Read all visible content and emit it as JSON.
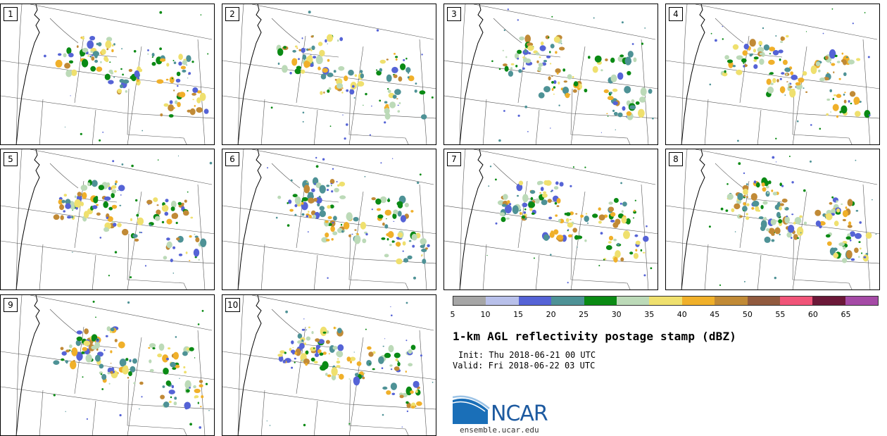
{
  "members": [
    "1",
    "2",
    "3",
    "4",
    "5",
    "6",
    "7",
    "8",
    "9",
    "10"
  ],
  "colorbar": {
    "colors": [
      "#a6a6a6",
      "#b8c0ea",
      "#5563d6",
      "#4e9296",
      "#0a8a14",
      "#bcdab8",
      "#efe06e",
      "#f0b02a",
      "#c18a36",
      "#915a3e",
      "#f05478",
      "#6b1838",
      "#a54aa6"
    ],
    "tick_labels": [
      "5",
      "10",
      "15",
      "20",
      "25",
      "30",
      "35",
      "40",
      "45",
      "50",
      "55",
      "60",
      "65"
    ]
  },
  "title": "1-km AGL reflectivity postage stamp (dBZ)",
  "init": "Init: Thu 2018-06-21 00 UTC",
  "valid": "Valid: Fri 2018-06-22 03 UTC",
  "logo": {
    "text": "NCAR",
    "url": "ensemble.ucar.edu"
  }
}
